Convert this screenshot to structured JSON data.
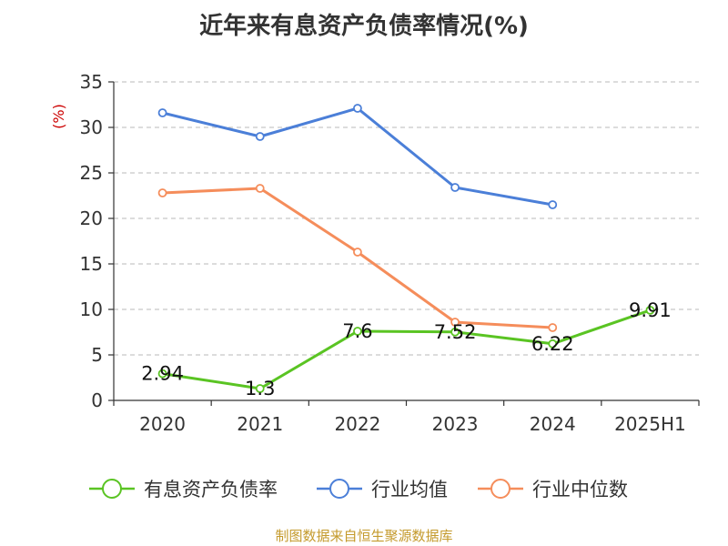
{
  "header": {
    "title": "近年来有息资产负债率情况(%)"
  },
  "footer": {
    "source": "制图数据来自恒生聚源数据库"
  },
  "chart_data": {
    "type": "line",
    "title": "近年来有息资产负债率情况(%)",
    "ylabel": "(%)",
    "xlabel": "",
    "categories": [
      "2020",
      "2021",
      "2022",
      "2023",
      "2024",
      "2025H1"
    ],
    "ylim": [
      0,
      35
    ],
    "yticks": [
      0,
      5,
      10,
      15,
      20,
      25,
      30,
      35
    ],
    "grid": "horizontal-dashed",
    "legend_position": "bottom",
    "series": [
      {
        "name": "有息资产负债率",
        "color": "#5ac423",
        "values": [
          2.94,
          1.3,
          7.6,
          7.52,
          6.22,
          9.91
        ],
        "labels": [
          "2.94",
          "1.3",
          "7.6",
          "7.52",
          "6.22",
          "9.91"
        ]
      },
      {
        "name": "行业均值",
        "color": "#4b7fd8",
        "values": [
          31.6,
          29.0,
          32.1,
          23.4,
          21.5,
          null
        ]
      },
      {
        "name": "行业中位数",
        "color": "#f58d5b",
        "values": [
          22.8,
          23.3,
          16.3,
          8.6,
          8.0,
          null
        ]
      }
    ]
  }
}
